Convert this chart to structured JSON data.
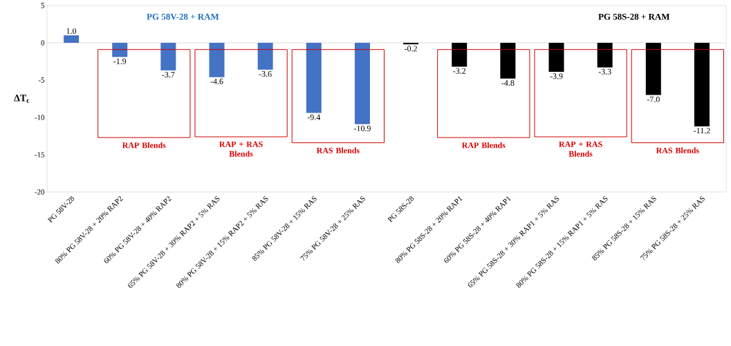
{
  "chart_data": {
    "type": "bar",
    "ylabel": "ΔT$_{c}$",
    "categories": [
      "PG 58V-28",
      "80% PG 58V-28 + 20% RAP2",
      "60% PG 58V-28 + 40% RAP2",
      "65% PG 58V-28 + 30% RAP2 + 5% RAS",
      "80% PG 58V-28 + 15% RAP2 + 5% RAS",
      "85% PG 58V-28 + 15% RAS",
      "75% PG 58V-28 + 25% RAS",
      "PG 58S-28",
      "80% PG 58S-28 + 20% RAP1",
      "60% PG 58S-28 + 40% RAP1",
      "65% PG 58S-28 + 30% RAP1 + 5% RAS",
      "80% PG 58S-28 + 15% RAP1 + 5% RAS",
      "85% PG 58S-28 + 15% RAS",
      "75% PG 58S-28 + 25% RAS"
    ],
    "values": [
      1.0,
      -1.9,
      -3.7,
      -4.6,
      -3.6,
      -9.4,
      -10.9,
      -0.2,
      -3.2,
      -4.8,
      -3.9,
      -3.3,
      -7.0,
      -11.2
    ],
    "colors": [
      "#4472c4",
      "#4472c4",
      "#4472c4",
      "#4472c4",
      "#4472c4",
      "#4472c4",
      "#4472c4",
      "#000000",
      "#000000",
      "#000000",
      "#000000",
      "#000000",
      "#000000",
      "#000000"
    ],
    "value_labels": [
      "1.0",
      "-1.9",
      "-3.7",
      "-4.6",
      "-3.6",
      "-9.4",
      "-10.9",
      "-0.2",
      "-3.2",
      "-4.8",
      "-3.9",
      "-3.3",
      "-7.0",
      "-11.2"
    ],
    "ylim": [
      -20,
      5
    ],
    "yticks": [
      -20,
      -15,
      -10,
      -5,
      0,
      5
    ],
    "annotations": [
      "PG 58V-28 + RAM",
      "PG 58S-28 + RAM",
      "RAP Blends",
      "RAP + RAS Blends",
      "RAS Blends",
      "RAP Blends",
      "RAP + RAS Blends",
      "RAS Blends"
    ]
  }
}
